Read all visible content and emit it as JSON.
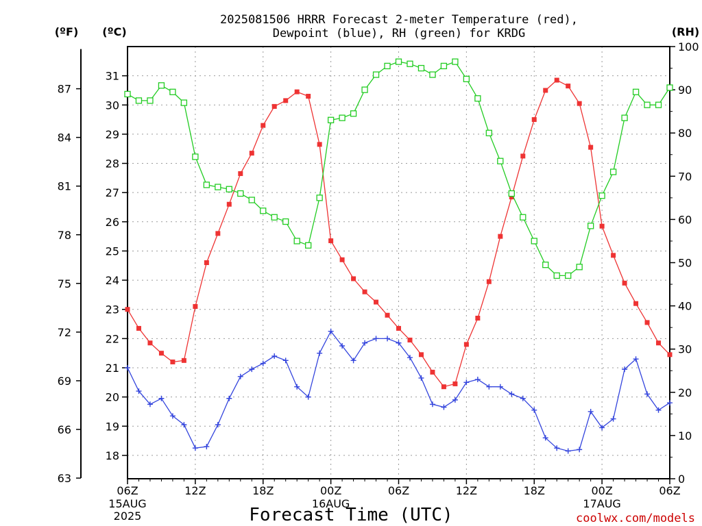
{
  "chart_data": {
    "type": "line",
    "title_line1": "2025081506 HRRR Forecast 2-meter Temperature (red),",
    "title_line2": "Dewpoint (blue), RH (green) for KRDG",
    "xlabel": "Forecast Time (UTC)",
    "credit": "coolwx.com/models",
    "axes": {
      "left_outer_unit": "(ºF)",
      "left_inner_unit": "(ºC)",
      "right_unit": "(RH)",
      "fahrenheit_ticks": [
        "63",
        "66",
        "69",
        "72",
        "75",
        "78",
        "81",
        "84",
        "87"
      ],
      "celsius_ticks": [
        "18",
        "19",
        "20",
        "21",
        "22",
        "23",
        "24",
        "25",
        "26",
        "27",
        "28",
        "29",
        "30",
        "31"
      ],
      "rh_ticks": [
        "0",
        "10",
        "20",
        "30",
        "40",
        "50",
        "60",
        "70",
        "80",
        "90",
        "100"
      ],
      "celsius_range": [
        17.2,
        32.0
      ],
      "rh_range": [
        0,
        100
      ],
      "x_range_hours": [
        0,
        48
      ],
      "x_tick_labels": [
        {
          "label": "06Z",
          "date": "15AUG",
          "year": "2025"
        },
        {
          "label": "12Z"
        },
        {
          "label": "18Z"
        },
        {
          "label": "00Z",
          "date": "16AUG"
        },
        {
          "label": "06Z"
        },
        {
          "label": "12Z"
        },
        {
          "label": "18Z"
        },
        {
          "label": "00Z",
          "date": "17AUG"
        },
        {
          "label": "06Z"
        }
      ]
    },
    "grid": true,
    "series": [
      {
        "name": "Temperature",
        "color": "#ee3333",
        "marker": "filled-square",
        "axis": "celsius",
        "x": [
          0,
          1,
          2,
          3,
          4,
          5,
          6,
          7,
          8,
          9,
          10,
          11,
          12,
          13,
          14,
          15,
          16,
          17,
          18,
          19,
          20,
          21,
          22,
          23,
          24,
          25,
          26,
          27,
          28,
          29,
          30,
          31,
          32,
          33,
          34,
          35,
          36,
          37,
          38,
          39,
          40,
          41,
          42,
          43,
          44,
          45,
          46,
          47,
          48
        ],
        "values": [
          23.0,
          22.35,
          21.85,
          21.5,
          21.2,
          21.25,
          23.1,
          24.6,
          25.6,
          26.6,
          27.65,
          28.35,
          29.3,
          29.95,
          30.15,
          30.45,
          30.3,
          28.65,
          25.35,
          24.7,
          24.05,
          23.6,
          23.25,
          22.8,
          22.35,
          21.95,
          21.45,
          20.85,
          20.35,
          20.45,
          21.8,
          22.7,
          23.95,
          25.5,
          26.85,
          28.25,
          29.5,
          30.5,
          30.85,
          30.65,
          30.05,
          28.55,
          25.85,
          24.85,
          23.9,
          23.2,
          22.55,
          21.85,
          21.45
        ]
      },
      {
        "name": "Dewpoint",
        "color": "#3344dd",
        "marker": "plus",
        "axis": "celsius",
        "x": [
          0,
          1,
          2,
          3,
          4,
          5,
          6,
          7,
          8,
          9,
          10,
          11,
          12,
          13,
          14,
          15,
          16,
          17,
          18,
          19,
          20,
          21,
          22,
          23,
          24,
          25,
          26,
          27,
          28,
          29,
          30,
          31,
          32,
          33,
          34,
          35,
          36,
          37,
          38,
          39,
          40,
          41,
          42,
          43,
          44,
          45,
          46,
          47,
          48
        ],
        "values": [
          21.0,
          20.2,
          19.75,
          19.95,
          19.35,
          19.05,
          18.25,
          18.3,
          19.05,
          19.95,
          20.7,
          20.95,
          21.15,
          21.4,
          21.25,
          20.35,
          20.0,
          21.5,
          22.25,
          21.75,
          21.25,
          21.85,
          22.0,
          22.0,
          21.85,
          21.35,
          20.65,
          19.75,
          19.65,
          19.9,
          20.5,
          20.6,
          20.35,
          20.35,
          20.1,
          19.95,
          19.55,
          18.6,
          18.25,
          18.15,
          18.2,
          19.5,
          18.95,
          19.25,
          20.95,
          21.3,
          20.1,
          19.55,
          19.8
        ]
      },
      {
        "name": "RH",
        "color": "#22cc22",
        "marker": "open-square",
        "axis": "rh",
        "x": [
          0,
          1,
          2,
          3,
          4,
          5,
          6,
          7,
          8,
          9,
          10,
          11,
          12,
          13,
          14,
          15,
          16,
          17,
          18,
          19,
          20,
          21,
          22,
          23,
          24,
          25,
          26,
          27,
          28,
          29,
          30,
          31,
          32,
          33,
          34,
          35,
          36,
          37,
          38,
          39,
          40,
          41,
          42,
          43,
          44,
          45,
          46,
          47,
          48
        ],
        "values": [
          89,
          87.5,
          87.5,
          91,
          89.5,
          87,
          74.5,
          68,
          67.5,
          67,
          66,
          64.5,
          62,
          60.5,
          59.5,
          55,
          54,
          65,
          83,
          83.5,
          84.5,
          90,
          93.5,
          95.5,
          96.5,
          96,
          95,
          93.5,
          95.5,
          96.5,
          92.5,
          88,
          80,
          73.5,
          66,
          60.5,
          55,
          49.5,
          47,
          47,
          49,
          58.5,
          65.5,
          71,
          83.5,
          89.5,
          86.5,
          86.5,
          90.5
        ]
      }
    ]
  }
}
